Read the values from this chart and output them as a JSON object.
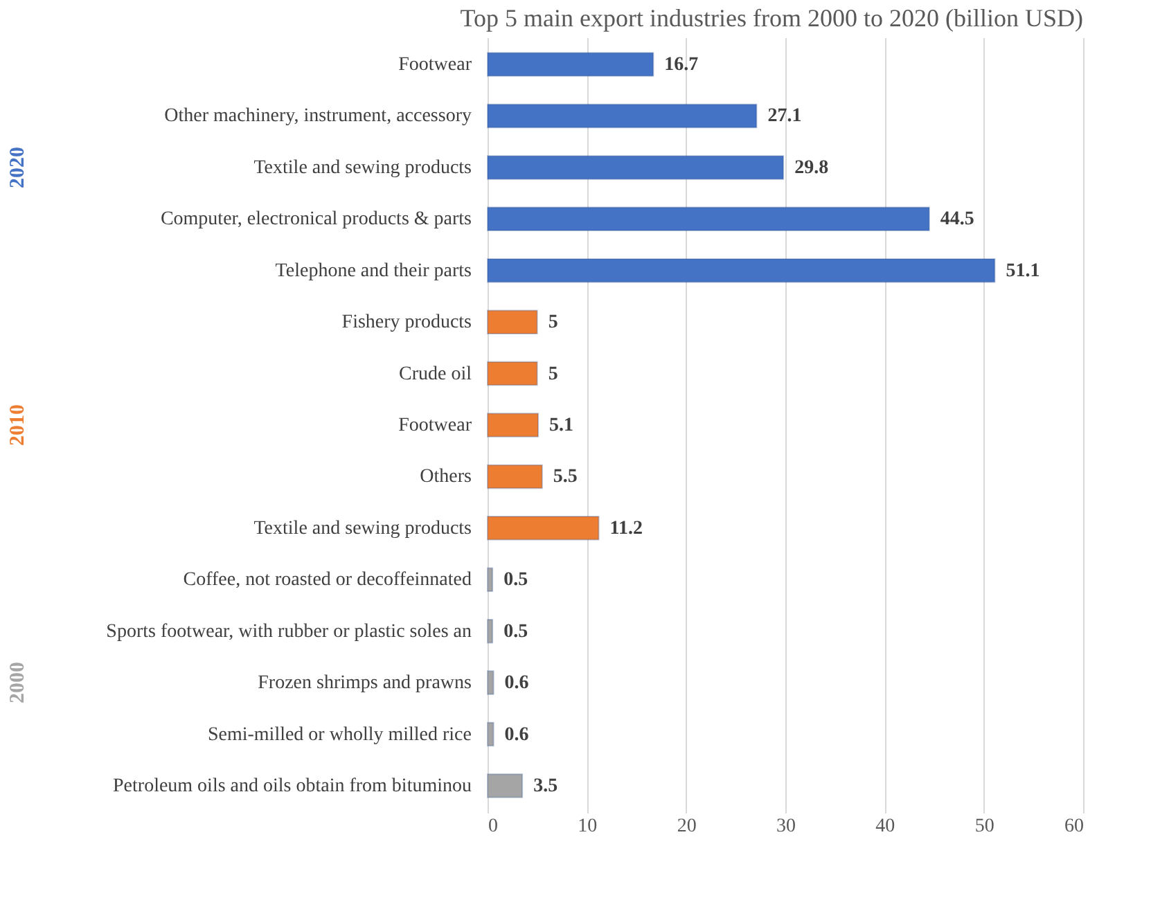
{
  "chart_data": {
    "type": "bar",
    "orientation": "horizontal",
    "title": "Top 5 main export industries from 2000 to 2020 (billion USD)",
    "categories": [
      "Footwear",
      "Other machinery, instrument, accessory",
      "Textile and sewing products",
      "Computer, electronical products & parts",
      "Telephone and their parts",
      "Fishery products",
      "Crude oil",
      "Footwear",
      "Others",
      "Textile and sewing products",
      "Coffee, not roasted or decoffeinnated",
      "Sports footwear, with rubber or plastic soles an",
      "Frozen shrimps and prawns",
      "Semi-milled or wholly milled rice",
      "Petroleum oils and oils obtain from bituminou"
    ],
    "series": [
      {
        "name": "2020",
        "color": "#4472c4",
        "values": [
          16.7,
          27.1,
          29.8,
          44.5,
          51.1,
          null,
          null,
          null,
          null,
          null,
          null,
          null,
          null,
          null,
          null
        ]
      },
      {
        "name": "2010",
        "color": "#ed7d31",
        "values": [
          null,
          null,
          null,
          null,
          null,
          5,
          5,
          5.1,
          5.5,
          11.2,
          null,
          null,
          null,
          null,
          null
        ]
      },
      {
        "name": "2000",
        "color": "#a5a5a5",
        "values": [
          null,
          null,
          null,
          null,
          null,
          null,
          null,
          null,
          null,
          null,
          0.5,
          0.5,
          0.6,
          0.6,
          3.5
        ]
      }
    ],
    "xlim": [
      0,
      60
    ],
    "xticks": [
      0,
      10,
      20,
      30,
      40,
      50,
      60
    ],
    "grid": "x",
    "data_labels": true,
    "legend": false
  }
}
